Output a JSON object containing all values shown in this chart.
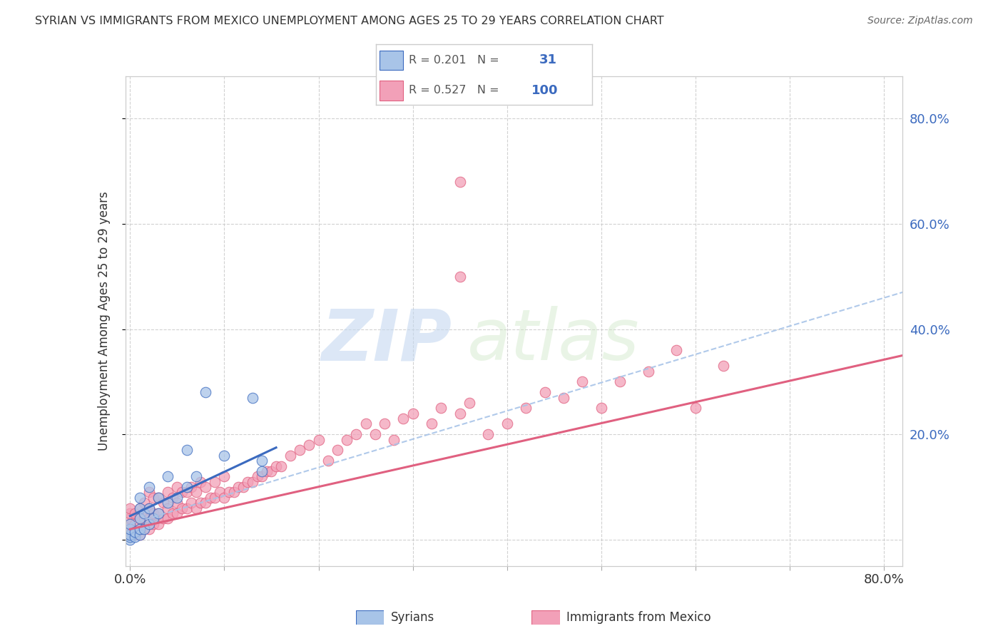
{
  "title": "SYRIAN VS IMMIGRANTS FROM MEXICO UNEMPLOYMENT AMONG AGES 25 TO 29 YEARS CORRELATION CHART",
  "source": "Source: ZipAtlas.com",
  "ylabel": "Unemployment Among Ages 25 to 29 years",
  "xlim": [
    -0.005,
    0.82
  ],
  "ylim": [
    -0.05,
    0.88
  ],
  "legend_label1": "Syrians",
  "legend_label2": "Immigrants from Mexico",
  "watermark_zip": "ZIP",
  "watermark_atlas": "atlas",
  "color_syrian": "#a8c4e8",
  "color_mexico": "#f2a0b8",
  "color_syrian_line": "#3b6abf",
  "color_mexico_line": "#e06080",
  "color_dashed": "#a8c4e8",
  "background_color": "#ffffff",
  "grid_color": "#cccccc",
  "syrian_x": [
    0.0,
    0.0,
    0.0,
    0.0,
    0.0,
    0.005,
    0.005,
    0.01,
    0.01,
    0.01,
    0.01,
    0.01,
    0.015,
    0.015,
    0.02,
    0.02,
    0.02,
    0.025,
    0.03,
    0.03,
    0.04,
    0.04,
    0.05,
    0.06,
    0.06,
    0.07,
    0.08,
    0.1,
    0.13,
    0.14,
    0.14
  ],
  "syrian_y": [
    0.0,
    0.005,
    0.01,
    0.02,
    0.03,
    0.005,
    0.015,
    0.01,
    0.02,
    0.04,
    0.06,
    0.08,
    0.02,
    0.05,
    0.03,
    0.06,
    0.1,
    0.04,
    0.05,
    0.08,
    0.07,
    0.12,
    0.08,
    0.1,
    0.17,
    0.12,
    0.28,
    0.16,
    0.27,
    0.13,
    0.15
  ],
  "mexico_x": [
    0.0,
    0.0,
    0.0,
    0.0,
    0.0,
    0.0,
    0.005,
    0.005,
    0.005,
    0.01,
    0.01,
    0.01,
    0.01,
    0.015,
    0.015,
    0.015,
    0.02,
    0.02,
    0.02,
    0.02,
    0.025,
    0.025,
    0.025,
    0.03,
    0.03,
    0.03,
    0.035,
    0.035,
    0.04,
    0.04,
    0.04,
    0.045,
    0.045,
    0.05,
    0.05,
    0.05,
    0.055,
    0.055,
    0.06,
    0.06,
    0.065,
    0.065,
    0.07,
    0.07,
    0.075,
    0.075,
    0.08,
    0.08,
    0.085,
    0.09,
    0.09,
    0.095,
    0.1,
    0.1,
    0.105,
    0.11,
    0.115,
    0.12,
    0.125,
    0.13,
    0.135,
    0.14,
    0.145,
    0.15,
    0.155,
    0.16,
    0.17,
    0.18,
    0.19,
    0.2,
    0.21,
    0.22,
    0.23,
    0.24,
    0.25,
    0.26,
    0.27,
    0.28,
    0.29,
    0.3,
    0.32,
    0.33,
    0.35,
    0.36,
    0.38,
    0.4,
    0.42,
    0.44,
    0.46,
    0.48,
    0.5,
    0.52,
    0.55,
    0.58,
    0.6,
    0.63,
    0.35,
    0.35
  ],
  "mexico_y": [
    0.01,
    0.02,
    0.03,
    0.04,
    0.05,
    0.06,
    0.01,
    0.03,
    0.05,
    0.01,
    0.02,
    0.04,
    0.06,
    0.02,
    0.04,
    0.07,
    0.02,
    0.04,
    0.06,
    0.09,
    0.03,
    0.05,
    0.08,
    0.03,
    0.05,
    0.08,
    0.04,
    0.07,
    0.04,
    0.06,
    0.09,
    0.05,
    0.08,
    0.05,
    0.07,
    0.1,
    0.06,
    0.09,
    0.06,
    0.09,
    0.07,
    0.1,
    0.06,
    0.09,
    0.07,
    0.11,
    0.07,
    0.1,
    0.08,
    0.08,
    0.11,
    0.09,
    0.08,
    0.12,
    0.09,
    0.09,
    0.1,
    0.1,
    0.11,
    0.11,
    0.12,
    0.12,
    0.13,
    0.13,
    0.14,
    0.14,
    0.16,
    0.17,
    0.18,
    0.19,
    0.15,
    0.17,
    0.19,
    0.2,
    0.22,
    0.2,
    0.22,
    0.19,
    0.23,
    0.24,
    0.22,
    0.25,
    0.24,
    0.26,
    0.2,
    0.22,
    0.25,
    0.28,
    0.27,
    0.3,
    0.25,
    0.3,
    0.32,
    0.36,
    0.25,
    0.33,
    0.5,
    0.68
  ],
  "syrian_line_xstart": 0.0,
  "syrian_line_xend": 0.155,
  "syrian_line_ystart": 0.045,
  "syrian_line_yend": 0.175,
  "dashed_line_xstart": 0.0,
  "dashed_line_xend": 0.82,
  "dashed_line_ystart": 0.03,
  "dashed_line_yend": 0.47,
  "mexico_line_xstart": 0.0,
  "mexico_line_xend": 0.82,
  "mexico_line_ystart": 0.02,
  "mexico_line_yend": 0.35
}
